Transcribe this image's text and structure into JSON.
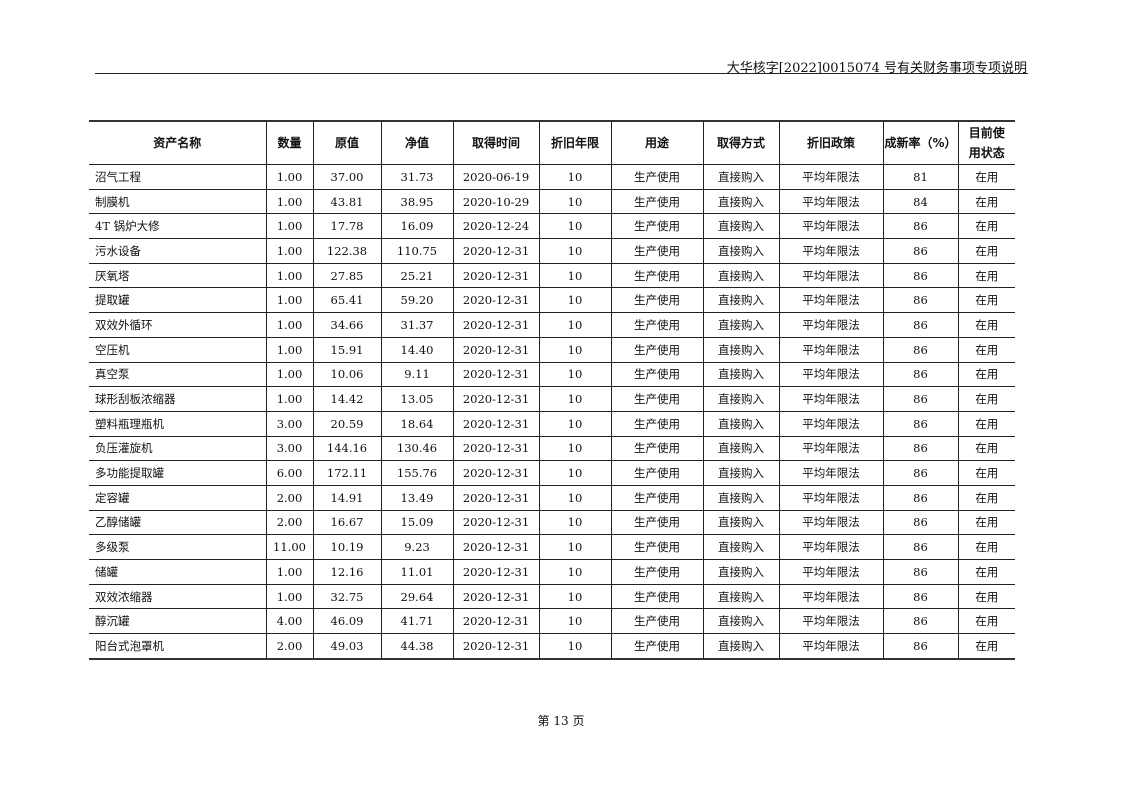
{
  "header": {
    "title": "大华核字[2022]0015074 号有关财务事项专项说明"
  },
  "table": {
    "columns": [
      "资产名称",
      "数量",
      "原值",
      "净值",
      "取得时间",
      "折旧年限",
      "用途",
      "取得方式",
      "折旧政策",
      "成新率（%）",
      "目前使用状态"
    ],
    "rows": [
      [
        "沼气工程",
        "1.00",
        "37.00",
        "31.73",
        "2020-06-19",
        "10",
        "生产使用",
        "直接购入",
        "平均年限法",
        "81",
        "在用"
      ],
      [
        "制膜机",
        "1.00",
        "43.81",
        "38.95",
        "2020-10-29",
        "10",
        "生产使用",
        "直接购入",
        "平均年限法",
        "84",
        "在用"
      ],
      [
        "4T 锅炉大修",
        "1.00",
        "17.78",
        "16.09",
        "2020-12-24",
        "10",
        "生产使用",
        "直接购入",
        "平均年限法",
        "86",
        "在用"
      ],
      [
        "污水设备",
        "1.00",
        "122.38",
        "110.75",
        "2020-12-31",
        "10",
        "生产使用",
        "直接购入",
        "平均年限法",
        "86",
        "在用"
      ],
      [
        "厌氧塔",
        "1.00",
        "27.85",
        "25.21",
        "2020-12-31",
        "10",
        "生产使用",
        "直接购入",
        "平均年限法",
        "86",
        "在用"
      ],
      [
        "提取罐",
        "1.00",
        "65.41",
        "59.20",
        "2020-12-31",
        "10",
        "生产使用",
        "直接购入",
        "平均年限法",
        "86",
        "在用"
      ],
      [
        "双效外循环",
        "1.00",
        "34.66",
        "31.37",
        "2020-12-31",
        "10",
        "生产使用",
        "直接购入",
        "平均年限法",
        "86",
        "在用"
      ],
      [
        "空压机",
        "1.00",
        "15.91",
        "14.40",
        "2020-12-31",
        "10",
        "生产使用",
        "直接购入",
        "平均年限法",
        "86",
        "在用"
      ],
      [
        "真空泵",
        "1.00",
        "10.06",
        "9.11",
        "2020-12-31",
        "10",
        "生产使用",
        "直接购入",
        "平均年限法",
        "86",
        "在用"
      ],
      [
        "球形刮板浓缩器",
        "1.00",
        "14.42",
        "13.05",
        "2020-12-31",
        "10",
        "生产使用",
        "直接购入",
        "平均年限法",
        "86",
        "在用"
      ],
      [
        "塑料瓶理瓶机",
        "3.00",
        "20.59",
        "18.64",
        "2020-12-31",
        "10",
        "生产使用",
        "直接购入",
        "平均年限法",
        "86",
        "在用"
      ],
      [
        "负压灌旋机",
        "3.00",
        "144.16",
        "130.46",
        "2020-12-31",
        "10",
        "生产使用",
        "直接购入",
        "平均年限法",
        "86",
        "在用"
      ],
      [
        "多功能提取罐",
        "6.00",
        "172.11",
        "155.76",
        "2020-12-31",
        "10",
        "生产使用",
        "直接购入",
        "平均年限法",
        "86",
        "在用"
      ],
      [
        "定容罐",
        "2.00",
        "14.91",
        "13.49",
        "2020-12-31",
        "10",
        "生产使用",
        "直接购入",
        "平均年限法",
        "86",
        "在用"
      ],
      [
        "乙醇储罐",
        "2.00",
        "16.67",
        "15.09",
        "2020-12-31",
        "10",
        "生产使用",
        "直接购入",
        "平均年限法",
        "86",
        "在用"
      ],
      [
        "多级泵",
        "11.00",
        "10.19",
        "9.23",
        "2020-12-31",
        "10",
        "生产使用",
        "直接购入",
        "平均年限法",
        "86",
        "在用"
      ],
      [
        "储罐",
        "1.00",
        "12.16",
        "11.01",
        "2020-12-31",
        "10",
        "生产使用",
        "直接购入",
        "平均年限法",
        "86",
        "在用"
      ],
      [
        "双效浓缩器",
        "1.00",
        "32.75",
        "29.64",
        "2020-12-31",
        "10",
        "生产使用",
        "直接购入",
        "平均年限法",
        "86",
        "在用"
      ],
      [
        "醇沉罐",
        "4.00",
        "46.09",
        "41.71",
        "2020-12-31",
        "10",
        "生产使用",
        "直接购入",
        "平均年限法",
        "86",
        "在用"
      ],
      [
        "阳台式泡罩机",
        "2.00",
        "49.03",
        "44.38",
        "2020-12-31",
        "10",
        "生产使用",
        "直接购入",
        "平均年限法",
        "86",
        "在用"
      ]
    ]
  },
  "footer": {
    "page": "第 13 页"
  }
}
